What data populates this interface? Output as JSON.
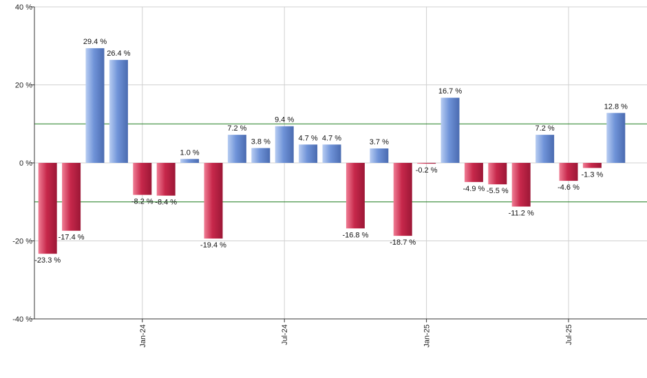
{
  "chart_data": {
    "type": "bar",
    "unit_suffix": " %",
    "ylim": [
      -40,
      40
    ],
    "yticks": [
      -40,
      -20,
      0,
      20,
      40
    ],
    "reference_lines": [
      10,
      -10
    ],
    "x_ticks": [
      {
        "label": "Jan-24",
        "position": 4.5
      },
      {
        "label": "Jul-24",
        "position": 10.5
      },
      {
        "label": "Jan-25",
        "position": 16.5
      },
      {
        "label": "Jul-25",
        "position": 22.5
      }
    ],
    "values": [
      -23.3,
      -17.4,
      29.4,
      26.4,
      -8.2,
      -8.4,
      1.0,
      -19.4,
      7.2,
      3.8,
      9.4,
      4.7,
      4.7,
      -16.8,
      3.7,
      -18.7,
      -0.2,
      16.7,
      -4.9,
      -5.5,
      -11.2,
      7.2,
      -4.6,
      -1.3,
      12.8
    ],
    "labels": [
      "-23.3 %",
      "-17.4 %",
      "29.4 %",
      "26.4 %",
      "-8.2 %",
      "-8.4 %",
      "1.0 %",
      "-19.4 %",
      "7.2 %",
      "3.8 %",
      "9.4 %",
      "4.7 %",
      "4.7 %",
      "-16.8 %",
      "3.7 %",
      "-18.7 %",
      "-0.2 %",
      "16.7 %",
      "-4.9 %",
      "-5.5 %",
      "-11.2 %",
      "7.2 %",
      "-4.6 %",
      "-1.3 %",
      "12.8 %"
    ],
    "colors": {
      "positive": "#6f93d8",
      "positive_light": "#b8cdf2",
      "positive_dark": "#4a6bb0",
      "negative": "#c7284b",
      "negative_light": "#f07e95",
      "negative_dark": "#9c1736",
      "reference_line": "#1a7a1a",
      "grid": "#d0d0d0",
      "axis": "#333333"
    },
    "grid": true
  }
}
